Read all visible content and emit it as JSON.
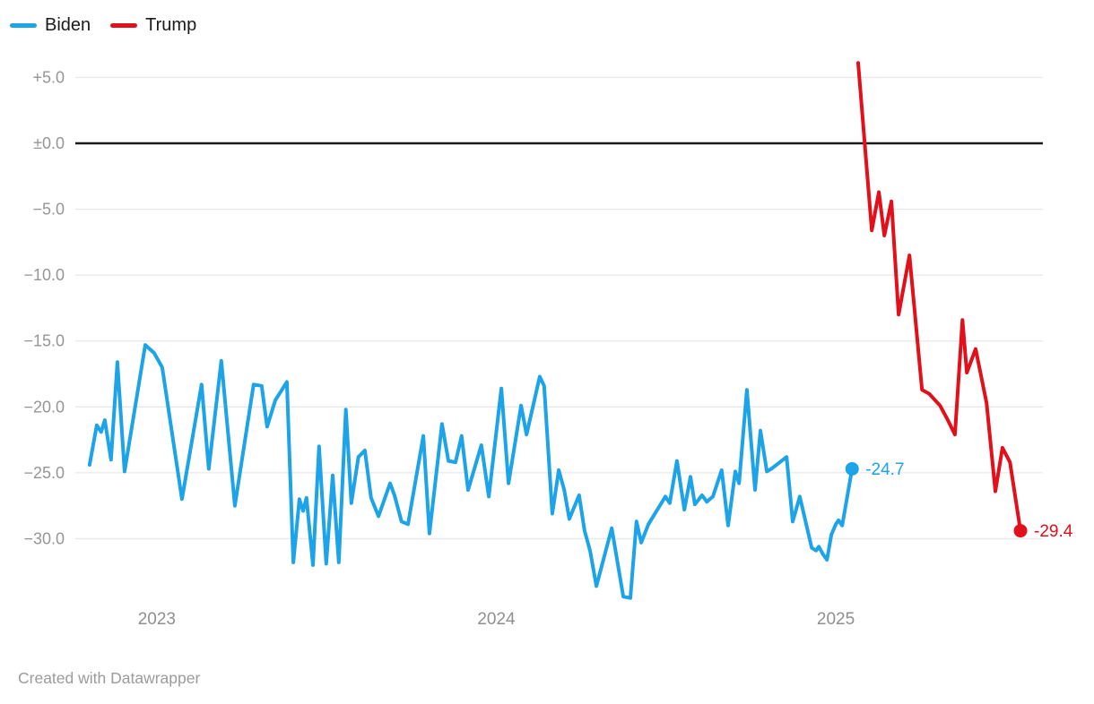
{
  "legend": {
    "items": [
      {
        "label": "Biden",
        "color": "#1CA3E8"
      },
      {
        "label": "Trump",
        "color": "#E1101A"
      }
    ]
  },
  "footer": {
    "text": "Created with Datawrapper"
  },
  "colors": {
    "background": "#ffffff",
    "gridline": "#e8e8e8",
    "zero_line": "#1a1a1a",
    "y_tick_text": "#969696",
    "x_tick_text": "#8f8f8f",
    "legend_text": "#1a1a1a",
    "footer_text": "#9b9b9b"
  },
  "chart_data": {
    "type": "line",
    "title": "",
    "xlabel": "",
    "ylabel": "",
    "grid": "horizontal",
    "legend_position": "top-left",
    "x_axis": {
      "range": [
        2022.76,
        2025.61
      ],
      "ticks": [
        {
          "v": 2023,
          "label": "2023"
        },
        {
          "v": 2024,
          "label": "2024"
        },
        {
          "v": 2025,
          "label": "2025"
        }
      ]
    },
    "y_axis": {
      "range": [
        -35.0,
        6.8
      ],
      "ticks": [
        {
          "v": 5,
          "label": "+5.0"
        },
        {
          "v": 0,
          "label": "±0.0"
        },
        {
          "v": -5,
          "label": "−5.0"
        },
        {
          "v": -10,
          "label": "−10.0"
        },
        {
          "v": -15,
          "label": "−15.0"
        },
        {
          "v": -20,
          "label": "−20.0"
        },
        {
          "v": -25,
          "label": "−25.0"
        },
        {
          "v": -30,
          "label": "−30.0"
        }
      ],
      "zero_line": true
    },
    "series": [
      {
        "name": "Biden",
        "color": "#1CA3E8",
        "end_label": "-24.7",
        "end_value": -24.7,
        "end_dot": true,
        "points": [
          [
            2022.802,
            -24.4
          ],
          [
            2022.823,
            -21.4
          ],
          [
            2022.836,
            -21.9
          ],
          [
            2022.847,
            -21.0
          ],
          [
            2022.865,
            -24.0
          ],
          [
            2022.884,
            -16.6
          ],
          [
            2022.905,
            -24.9
          ],
          [
            2022.966,
            -15.3
          ],
          [
            2022.992,
            -15.9
          ],
          [
            2023.016,
            -17.0
          ],
          [
            2023.074,
            -27.0
          ],
          [
            2023.132,
            -18.3
          ],
          [
            2023.153,
            -24.7
          ],
          [
            2023.19,
            -16.5
          ],
          [
            2023.23,
            -27.5
          ],
          [
            2023.285,
            -18.3
          ],
          [
            2023.309,
            -18.4
          ],
          [
            2023.325,
            -21.5
          ],
          [
            2023.349,
            -19.5
          ],
          [
            2023.383,
            -18.1
          ],
          [
            2023.402,
            -31.8
          ],
          [
            2023.42,
            -27.0
          ],
          [
            2023.431,
            -27.9
          ],
          [
            2023.441,
            -26.9
          ],
          [
            2023.46,
            -32.0
          ],
          [
            2023.478,
            -23.0
          ],
          [
            2023.499,
            -31.9
          ],
          [
            2023.518,
            -25.2
          ],
          [
            2023.536,
            -31.8
          ],
          [
            2023.557,
            -20.2
          ],
          [
            2023.573,
            -27.3
          ],
          [
            2023.594,
            -23.8
          ],
          [
            2023.613,
            -23.3
          ],
          [
            2023.631,
            -26.9
          ],
          [
            2023.653,
            -28.3
          ],
          [
            2023.687,
            -25.8
          ],
          [
            2023.7,
            -26.7
          ],
          [
            2023.721,
            -28.7
          ],
          [
            2023.74,
            -28.9
          ],
          [
            2023.785,
            -22.2
          ],
          [
            2023.803,
            -29.6
          ],
          [
            2023.84,
            -21.3
          ],
          [
            2023.859,
            -24.1
          ],
          [
            2023.88,
            -24.2
          ],
          [
            2023.898,
            -22.2
          ],
          [
            2023.917,
            -26.3
          ],
          [
            2023.956,
            -22.9
          ],
          [
            2023.978,
            -26.8
          ],
          [
            2024.015,
            -18.6
          ],
          [
            2024.036,
            -25.8
          ],
          [
            2024.073,
            -19.9
          ],
          [
            2024.089,
            -22.1
          ],
          [
            2024.128,
            -17.7
          ],
          [
            2024.141,
            -18.4
          ],
          [
            2024.165,
            -28.1
          ],
          [
            2024.184,
            -24.8
          ],
          [
            2024.2,
            -26.3
          ],
          [
            2024.215,
            -28.5
          ],
          [
            2024.244,
            -26.7
          ],
          [
            2024.26,
            -29.4
          ],
          [
            2024.276,
            -30.9
          ],
          [
            2024.295,
            -33.6
          ],
          [
            2024.34,
            -29.2
          ],
          [
            2024.374,
            -34.4
          ],
          [
            2024.395,
            -34.5
          ],
          [
            2024.413,
            -28.7
          ],
          [
            2024.427,
            -30.3
          ],
          [
            2024.448,
            -28.9
          ],
          [
            2024.498,
            -26.8
          ],
          [
            2024.511,
            -27.3
          ],
          [
            2024.532,
            -24.1
          ],
          [
            2024.554,
            -27.8
          ],
          [
            2024.572,
            -25.3
          ],
          [
            2024.585,
            -27.4
          ],
          [
            2024.606,
            -26.7
          ],
          [
            2024.62,
            -27.2
          ],
          [
            2024.638,
            -26.8
          ],
          [
            2024.664,
            -24.8
          ],
          [
            2024.683,
            -29.0
          ],
          [
            2024.704,
            -24.9
          ],
          [
            2024.715,
            -25.8
          ],
          [
            2024.738,
            -18.7
          ],
          [
            2024.762,
            -26.3
          ],
          [
            2024.778,
            -21.8
          ],
          [
            2024.797,
            -24.9
          ],
          [
            2024.81,
            -24.7
          ],
          [
            2024.855,
            -23.8
          ],
          [
            2024.873,
            -28.7
          ],
          [
            2024.894,
            -26.8
          ],
          [
            2024.929,
            -30.7
          ],
          [
            2024.942,
            -30.9
          ],
          [
            2024.95,
            -30.6
          ],
          [
            2024.963,
            -31.2
          ],
          [
            2024.974,
            -31.6
          ],
          [
            2024.987,
            -29.7
          ],
          [
            2025.0,
            -28.9
          ],
          [
            2025.008,
            -28.6
          ],
          [
            2025.019,
            -29.0
          ],
          [
            2025.048,
            -24.7
          ]
        ]
      },
      {
        "name": "Trump",
        "color": "#E1101A",
        "end_label": "-29.4",
        "end_value": -29.4,
        "end_dot": true,
        "points": [
          [
            2025.066,
            6.1
          ],
          [
            2025.106,
            -6.6
          ],
          [
            2025.127,
            -3.7
          ],
          [
            2025.143,
            -7.0
          ],
          [
            2025.164,
            -4.4
          ],
          [
            2025.185,
            -13.0
          ],
          [
            2025.217,
            -8.5
          ],
          [
            2025.254,
            -18.7
          ],
          [
            2025.275,
            -19.0
          ],
          [
            2025.307,
            -19.9
          ],
          [
            2025.33,
            -21.0
          ],
          [
            2025.351,
            -22.1
          ],
          [
            2025.373,
            -13.4
          ],
          [
            2025.386,
            -17.4
          ],
          [
            2025.412,
            -15.6
          ],
          [
            2025.444,
            -19.7
          ],
          [
            2025.47,
            -26.4
          ],
          [
            2025.491,
            -23.1
          ],
          [
            2025.513,
            -24.2
          ],
          [
            2025.544,
            -29.4
          ]
        ]
      }
    ]
  }
}
